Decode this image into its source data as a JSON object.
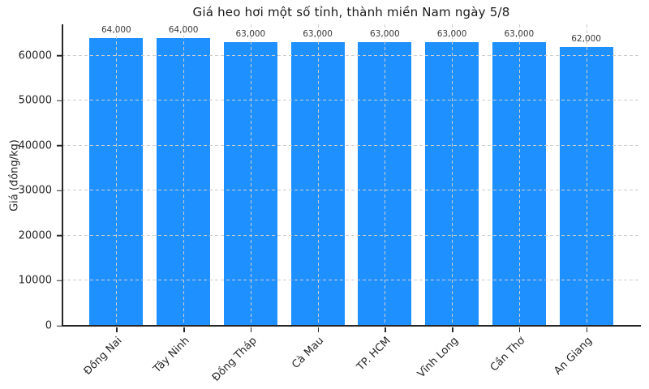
{
  "header": {
    "title": "Giá heo hơi một số tỉnh, thành miền Nam ngày 5/8"
  },
  "colors": {
    "bar": "#1E90FF",
    "grid": "#cdcdcd",
    "spine": "#262626",
    "text": "#262626",
    "value_label": "#3a3a3a",
    "background": "#ffffff"
  },
  "chart_data": {
    "type": "bar",
    "title": "Giá heo hơi một số tỉnh, thành miền Nam ngày 5/8",
    "xlabel": "",
    "ylabel": "Giá (đồng/kg)",
    "categories": [
      "Đồng Nai",
      "Tây Ninh",
      "Đồng Tháp",
      "Cà Mau",
      "TP. HCM",
      "Vĩnh Long",
      "Cần Thơ",
      "An Giang"
    ],
    "values": [
      64000,
      64000,
      63000,
      63000,
      63000,
      63000,
      63000,
      62000
    ],
    "value_labels": [
      "64,000",
      "64,000",
      "63,000",
      "63,000",
      "63,000",
      "63,000",
      "63,000",
      "62,000"
    ],
    "ylim": [
      0,
      67000
    ],
    "yticks": [
      0,
      10000,
      20000,
      30000,
      40000,
      50000,
      60000
    ],
    "ytick_labels": [
      "0",
      "10000",
      "20000",
      "30000",
      "40000",
      "50000",
      "60000"
    ],
    "xtick_rotation_deg": 45,
    "grid": "dashed gridlines on both axes, drawn over bars",
    "legend": "none",
    "bar_width_fraction": 0.8
  }
}
